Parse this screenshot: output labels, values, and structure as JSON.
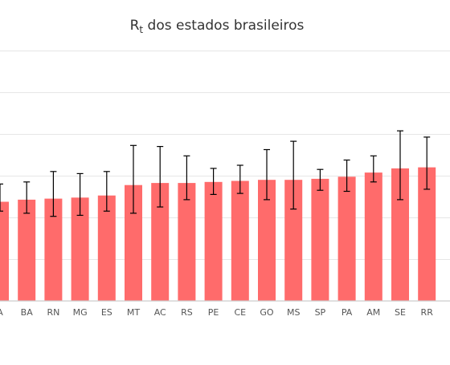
{
  "chart_data": {
    "type": "bar",
    "title_main": "R",
    "title_sub": "t",
    "title_rest": " dos estados brasileiros",
    "xlabel": "",
    "ylabel": "",
    "ylim": [
      0,
      1.2
    ],
    "grid": true,
    "bar_color": "#ff6b6b",
    "error_bar_color": "#000000",
    "categories": [
      "A",
      "BA",
      "RN",
      "MG",
      "ES",
      "MT",
      "AC",
      "RS",
      "PE",
      "CE",
      "GO",
      "MS",
      "SP",
      "PA",
      "AM",
      "SE",
      "RR"
    ],
    "values": [
      0.475,
      0.485,
      0.49,
      0.495,
      0.505,
      0.555,
      0.565,
      0.565,
      0.57,
      0.575,
      0.58,
      0.58,
      0.585,
      0.595,
      0.615,
      0.635,
      0.64
    ],
    "error_low": [
      0.43,
      0.42,
      0.405,
      0.41,
      0.43,
      0.42,
      0.45,
      0.485,
      0.51,
      0.515,
      0.485,
      0.44,
      0.53,
      0.525,
      0.57,
      0.485,
      0.535
    ],
    "error_high": [
      0.56,
      0.57,
      0.62,
      0.61,
      0.62,
      0.745,
      0.74,
      0.695,
      0.635,
      0.65,
      0.725,
      0.765,
      0.63,
      0.675,
      0.695,
      0.815,
      0.785
    ]
  }
}
